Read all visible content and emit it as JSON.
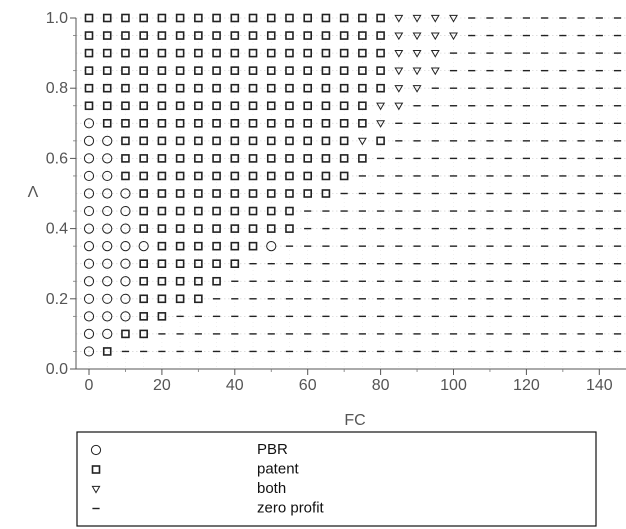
{
  "chart_data": {
    "type": "scatter",
    "xlabel": "FC",
    "ylabel": "Λ",
    "xlim": [
      -3,
      150
    ],
    "ylim": [
      0,
      1.0
    ],
    "x_ticks": [
      "0",
      "20",
      "40",
      "60",
      "80",
      "100",
      "120",
      "140"
    ],
    "x_tick_values": [
      0,
      20,
      40,
      60,
      80,
      100,
      120,
      140
    ],
    "y_ticks": [
      "0.0",
      "0.2",
      "0.4",
      "0.6",
      "0.8",
      "1.0"
    ],
    "y_tick_values": [
      0,
      0.2,
      0.4,
      0.6,
      0.8,
      1.0
    ],
    "grid_x": [
      0,
      5,
      10,
      15,
      20,
      25,
      30,
      35,
      40,
      45,
      50,
      55,
      60,
      65,
      70,
      75,
      80,
      85,
      90,
      95,
      100,
      105,
      110,
      115,
      120,
      125,
      130,
      135,
      140,
      145,
      150
    ],
    "grid_y": [
      0.05,
      0.1,
      0.15,
      0.2,
      0.25,
      0.3,
      0.35,
      0.4,
      0.45,
      0.5,
      0.55,
      0.6,
      0.65,
      0.7,
      0.75,
      0.8,
      0.85,
      0.9,
      0.95,
      1.0
    ],
    "regions": [
      {
        "y": 1.0,
        "pbr_max": -1,
        "patent_max": 80,
        "both_max": 100
      },
      {
        "y": 0.95,
        "pbr_max": -1,
        "patent_max": 80,
        "both_max": 100
      },
      {
        "y": 0.9,
        "pbr_max": -1,
        "patent_max": 80,
        "both_max": 95
      },
      {
        "y": 0.85,
        "pbr_max": -1,
        "patent_max": 80,
        "both_max": 95
      },
      {
        "y": 0.8,
        "pbr_max": -1,
        "patent_max": 80,
        "both_max": 90
      },
      {
        "y": 0.75,
        "pbr_max": -1,
        "patent_max": 75,
        "both_max": 85
      },
      {
        "y": 0.7,
        "pbr_max": 0,
        "patent_max": 75,
        "both_max": 80
      },
      {
        "y": 0.65,
        "pbr_max": 5,
        "patent_max": 70,
        "both_max": 75,
        "extra_patent": [
          80
        ]
      },
      {
        "y": 0.6,
        "pbr_max": 5,
        "patent_max": 75,
        "both_max": -1
      },
      {
        "y": 0.55,
        "pbr_max": 5,
        "patent_max": 70,
        "both_max": -1
      },
      {
        "y": 0.5,
        "pbr_max": 10,
        "patent_max": 65,
        "both_max": -1
      },
      {
        "y": 0.45,
        "pbr_max": 10,
        "patent_max": 55,
        "both_max": -1
      },
      {
        "y": 0.4,
        "pbr_max": 10,
        "patent_max": 55,
        "both_max": -1
      },
      {
        "y": 0.35,
        "pbr_max": 15,
        "patent_max": 45,
        "both_max": -1,
        "extra_pbr": [
          50
        ]
      },
      {
        "y": 0.3,
        "pbr_max": 10,
        "patent_max": 40,
        "both_max": -1
      },
      {
        "y": 0.25,
        "pbr_max": 10,
        "patent_max": 35,
        "both_max": -1
      },
      {
        "y": 0.2,
        "pbr_max": 10,
        "patent_max": 30,
        "both_max": -1
      },
      {
        "y": 0.15,
        "pbr_max": 10,
        "patent_max": 20,
        "both_max": -1
      },
      {
        "y": 0.1,
        "pbr_max": 5,
        "patent_max": 15,
        "both_max": -1
      },
      {
        "y": 0.05,
        "pbr_max": 0,
        "patent_max": 5,
        "both_max": -1
      }
    ],
    "legend": [
      {
        "symbol": "circle",
        "label": "PBR"
      },
      {
        "symbol": "square",
        "label": "patent"
      },
      {
        "symbol": "triangle",
        "label": "both"
      },
      {
        "symbol": "dash",
        "label": "zero profit"
      }
    ],
    "legend_position": "bottom",
    "grid": false
  }
}
